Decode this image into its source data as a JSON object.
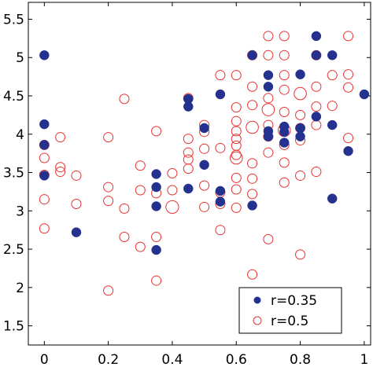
{
  "chart_data": {
    "type": "scatter",
    "title": "",
    "xlabel": "",
    "ylabel": "",
    "xlim": [
      -0.05,
      1.02
    ],
    "ylim": [
      1.25,
      5.72
    ],
    "xticks": [
      {
        "value": 0,
        "label": "0"
      },
      {
        "value": 0.2,
        "label": "0.2"
      },
      {
        "value": 0.4,
        "label": "0.4"
      },
      {
        "value": 0.6,
        "label": "0.6"
      },
      {
        "value": 0.8,
        "label": "0.8"
      },
      {
        "value": 1,
        "label": "1"
      }
    ],
    "yticks": [
      {
        "value": 1.5,
        "label": "1.5"
      },
      {
        "value": 2,
        "label": "2"
      },
      {
        "value": 2.5,
        "label": "2.5"
      },
      {
        "value": 3,
        "label": "3"
      },
      {
        "value": 3.5,
        "label": "3.5"
      },
      {
        "value": 4,
        "label": "4"
      },
      {
        "value": 4.5,
        "label": "4.5"
      },
      {
        "value": 5,
        "label": "5"
      },
      {
        "value": 5.5,
        "label": "5.5"
      }
    ],
    "grid": false,
    "legend": {
      "position": "bottom-right"
    },
    "series": [
      {
        "name": "r=0.35",
        "marker": "filled-circle",
        "color": "#25318f",
        "points": [
          {
            "x": 0,
            "y": 5.03
          },
          {
            "x": 0,
            "y": 4.13
          },
          {
            "x": 0,
            "y": 3.86
          },
          {
            "x": 0,
            "y": 3.46
          },
          {
            "x": 0.1,
            "y": 2.72
          },
          {
            "x": 0.35,
            "y": 3.48
          },
          {
            "x": 0.35,
            "y": 3.31
          },
          {
            "x": 0.35,
            "y": 3.06
          },
          {
            "x": 0.35,
            "y": 2.49
          },
          {
            "x": 0.45,
            "y": 4.46
          },
          {
            "x": 0.45,
            "y": 4.36
          },
          {
            "x": 0.45,
            "y": 3.29
          },
          {
            "x": 0.5,
            "y": 4.08
          },
          {
            "x": 0.5,
            "y": 3.6
          },
          {
            "x": 0.55,
            "y": 4.52
          },
          {
            "x": 0.55,
            "y": 3.26
          },
          {
            "x": 0.55,
            "y": 3.12
          },
          {
            "x": 0.65,
            "y": 5.03
          },
          {
            "x": 0.65,
            "y": 3.07
          },
          {
            "x": 0.7,
            "y": 4.77
          },
          {
            "x": 0.7,
            "y": 4.62
          },
          {
            "x": 0.7,
            "y": 4.04
          },
          {
            "x": 0.7,
            "y": 3.97
          },
          {
            "x": 0.75,
            "y": 4.1
          },
          {
            "x": 0.75,
            "y": 4.03
          },
          {
            "x": 0.75,
            "y": 3.89
          },
          {
            "x": 0.8,
            "y": 4.78
          },
          {
            "x": 0.8,
            "y": 4.08
          },
          {
            "x": 0.8,
            "y": 3.97
          },
          {
            "x": 0.85,
            "y": 5.28
          },
          {
            "x": 0.85,
            "y": 5.03
          },
          {
            "x": 0.85,
            "y": 4.23
          },
          {
            "x": 0.9,
            "y": 5.03
          },
          {
            "x": 0.9,
            "y": 4.12
          },
          {
            "x": 0.9,
            "y": 3.16
          },
          {
            "x": 0.95,
            "y": 3.78
          },
          {
            "x": 1,
            "y": 4.52
          }
        ]
      },
      {
        "name": "r=0.5",
        "marker": "open-circle",
        "color": "#e8312e",
        "points": [
          {
            "x": 0,
            "y": 3.86
          },
          {
            "x": 0,
            "y": 3.69
          },
          {
            "x": 0,
            "y": 3.47
          },
          {
            "x": 0,
            "y": 3.15
          },
          {
            "x": 0,
            "y": 2.77
          },
          {
            "x": 0.05,
            "y": 3.96
          },
          {
            "x": 0.05,
            "y": 3.57
          },
          {
            "x": 0.05,
            "y": 3.51
          },
          {
            "x": 0.1,
            "y": 3.46
          },
          {
            "x": 0.1,
            "y": 3.09
          },
          {
            "x": 0.2,
            "y": 3.96
          },
          {
            "x": 0.2,
            "y": 3.31
          },
          {
            "x": 0.2,
            "y": 3.13
          },
          {
            "x": 0.2,
            "y": 1.96
          },
          {
            "x": 0.25,
            "y": 4.46
          },
          {
            "x": 0.25,
            "y": 3.03
          },
          {
            "x": 0.25,
            "y": 2.66
          },
          {
            "x": 0.3,
            "y": 3.59
          },
          {
            "x": 0.3,
            "y": 3.27
          },
          {
            "x": 0.3,
            "y": 2.53
          },
          {
            "x": 0.35,
            "y": 4.04
          },
          {
            "x": 0.35,
            "y": 3.23
          },
          {
            "x": 0.35,
            "y": 2.66
          },
          {
            "x": 0.35,
            "y": 2.09
          },
          {
            "x": 0.4,
            "y": 3.49
          },
          {
            "x": 0.4,
            "y": 3.27
          },
          {
            "x": 0.4,
            "y": 3.05,
            "size": 1.35
          },
          {
            "x": 0.45,
            "y": 4.47
          },
          {
            "x": 0.45,
            "y": 3.94
          },
          {
            "x": 0.45,
            "y": 3.76
          },
          {
            "x": 0.45,
            "y": 3.67
          },
          {
            "x": 0.45,
            "y": 3.55
          },
          {
            "x": 0.5,
            "y": 4.12
          },
          {
            "x": 0.5,
            "y": 4.03
          },
          {
            "x": 0.5,
            "y": 3.81
          },
          {
            "x": 0.5,
            "y": 3.33
          },
          {
            "x": 0.5,
            "y": 3.05
          },
          {
            "x": 0.55,
            "y": 4.77
          },
          {
            "x": 0.55,
            "y": 3.82
          },
          {
            "x": 0.55,
            "y": 3.24
          },
          {
            "x": 0.55,
            "y": 3.09
          },
          {
            "x": 0.55,
            "y": 2.75
          },
          {
            "x": 0.6,
            "y": 4.77
          },
          {
            "x": 0.6,
            "y": 4.35
          },
          {
            "x": 0.6,
            "y": 4.17
          },
          {
            "x": 0.6,
            "y": 4.04
          },
          {
            "x": 0.6,
            "y": 3.94
          },
          {
            "x": 0.6,
            "y": 3.85
          },
          {
            "x": 0.6,
            "y": 3.73
          },
          {
            "x": 0.6,
            "y": 3.69,
            "size": 1.3
          },
          {
            "x": 0.6,
            "y": 3.43
          },
          {
            "x": 0.6,
            "y": 3.28
          },
          {
            "x": 0.6,
            "y": 3.04
          },
          {
            "x": 0.65,
            "y": 5.03
          },
          {
            "x": 0.65,
            "y": 4.62
          },
          {
            "x": 0.65,
            "y": 4.38
          },
          {
            "x": 0.65,
            "y": 4.09,
            "size": 1.3
          },
          {
            "x": 0.65,
            "y": 3.62
          },
          {
            "x": 0.65,
            "y": 3.42
          },
          {
            "x": 0.65,
            "y": 3.22
          },
          {
            "x": 0.65,
            "y": 2.17
          },
          {
            "x": 0.7,
            "y": 5.28
          },
          {
            "x": 0.7,
            "y": 5.03
          },
          {
            "x": 0.7,
            "y": 4.47
          },
          {
            "x": 0.7,
            "y": 4.32,
            "size": 1.3
          },
          {
            "x": 0.7,
            "y": 4.12
          },
          {
            "x": 0.7,
            "y": 3.97
          },
          {
            "x": 0.7,
            "y": 3.76
          },
          {
            "x": 0.7,
            "y": 2.63
          },
          {
            "x": 0.75,
            "y": 5.28
          },
          {
            "x": 0.75,
            "y": 5.03
          },
          {
            "x": 0.75,
            "y": 4.77
          },
          {
            "x": 0.75,
            "y": 4.58
          },
          {
            "x": 0.75,
            "y": 4.29
          },
          {
            "x": 0.75,
            "y": 4.05,
            "size": 1.3
          },
          {
            "x": 0.75,
            "y": 3.86
          },
          {
            "x": 0.75,
            "y": 3.63
          },
          {
            "x": 0.75,
            "y": 3.37
          },
          {
            "x": 0.8,
            "y": 4.53,
            "size": 1.3
          },
          {
            "x": 0.8,
            "y": 4.25
          },
          {
            "x": 0.8,
            "y": 4.08
          },
          {
            "x": 0.8,
            "y": 3.92
          },
          {
            "x": 0.8,
            "y": 3.46
          },
          {
            "x": 0.8,
            "y": 2.43
          },
          {
            "x": 0.85,
            "y": 5.03
          },
          {
            "x": 0.85,
            "y": 4.62
          },
          {
            "x": 0.85,
            "y": 4.36
          },
          {
            "x": 0.85,
            "y": 4.12
          },
          {
            "x": 0.85,
            "y": 3.51
          },
          {
            "x": 0.9,
            "y": 4.77
          },
          {
            "x": 0.9,
            "y": 4.37
          },
          {
            "x": 0.95,
            "y": 5.28
          },
          {
            "x": 0.95,
            "y": 4.78
          },
          {
            "x": 0.95,
            "y": 4.61
          },
          {
            "x": 0.95,
            "y": 3.95
          }
        ]
      }
    ]
  }
}
